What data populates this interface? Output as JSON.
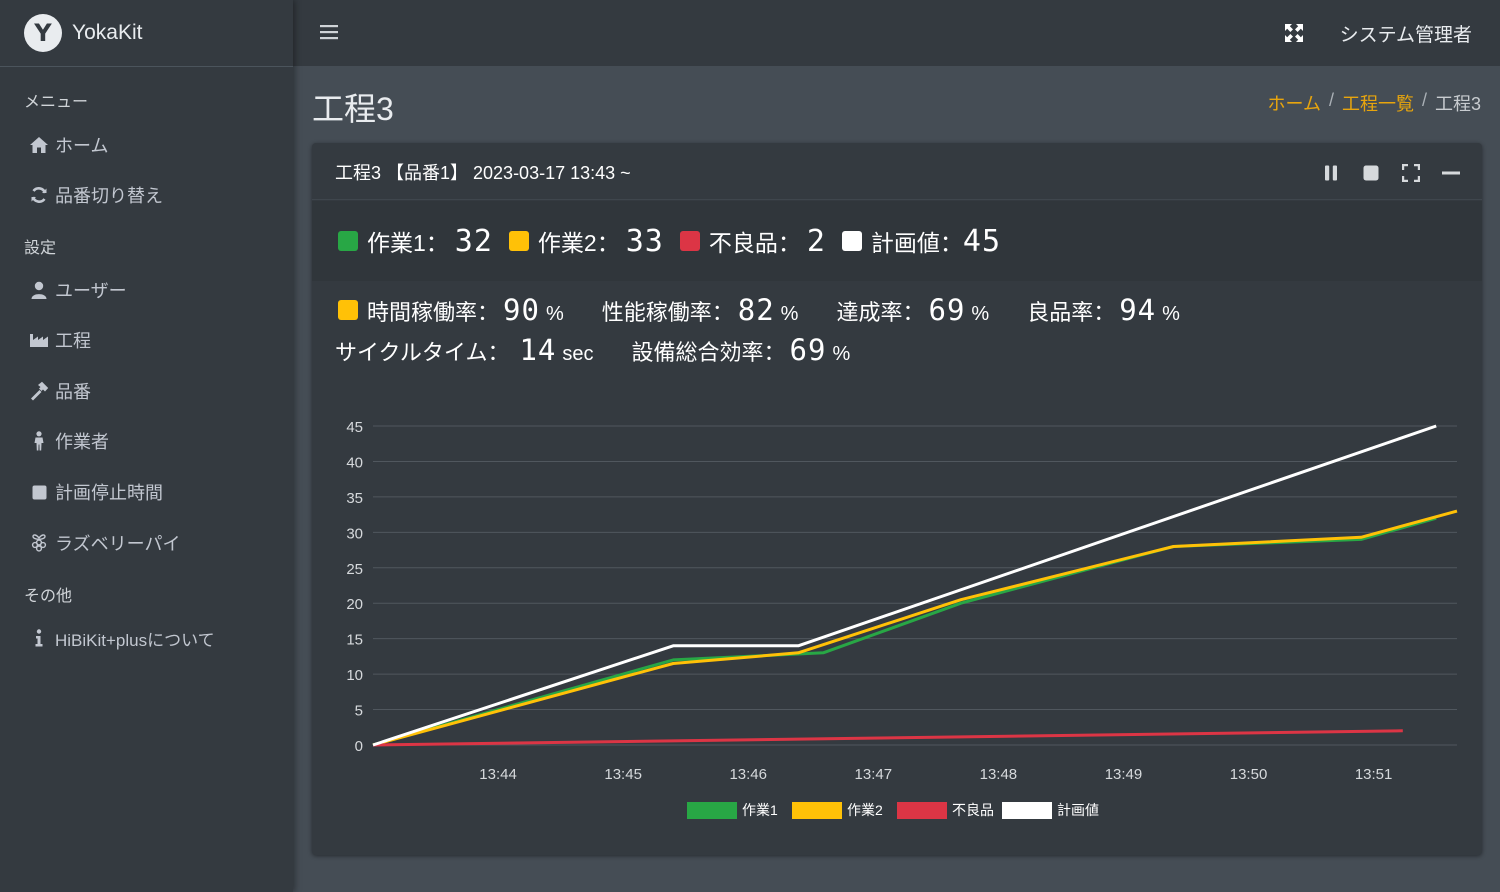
{
  "brand": {
    "logo_letter": "Y",
    "name": "YokaKit"
  },
  "sidebar": {
    "menu_header": "メニュー",
    "menu_items": [
      {
        "label": "ホーム",
        "icon": "home-icon"
      },
      {
        "label": "品番切り替え",
        "icon": "sync-icon"
      }
    ],
    "settings_header": "設定",
    "settings_items": [
      {
        "label": "ユーザー",
        "icon": "user-icon"
      },
      {
        "label": "工程",
        "icon": "industry-icon"
      },
      {
        "label": "品番",
        "icon": "hammer-icon"
      },
      {
        "label": "作業者",
        "icon": "person-icon"
      },
      {
        "label": "計画停止時間",
        "icon": "square-icon"
      },
      {
        "label": "ラズベリーパイ",
        "icon": "raspberry-pi-icon"
      }
    ],
    "other_header": "その他",
    "other_items": [
      {
        "label": "HiBiKit+plusについて",
        "icon": "info-icon"
      }
    ]
  },
  "navbar": {
    "user": "システム管理者"
  },
  "page": {
    "title": "工程3"
  },
  "breadcrumb": {
    "home": "ホーム",
    "list": "工程一覧",
    "current": "工程3"
  },
  "card": {
    "title": "工程3 【品番1】 2023-03-17 13:43 ~"
  },
  "counts": {
    "work1_label": "作業1：",
    "work1_value": "32",
    "work2_label": "作業2：",
    "work2_value": "33",
    "defect_label": "不良品：",
    "defect_value": "2",
    "plan_label": "計画値：",
    "plan_value": "45"
  },
  "rates": {
    "time_label": "時間稼働率：",
    "time_value": "90",
    "perf_label": "性能稼働率：",
    "perf_value": "82",
    "achieve_label": "達成率：",
    "achieve_value": "69",
    "quality_label": "良品率：",
    "quality_value": "94",
    "percent": "%",
    "cycle_label": "サイクルタイム：",
    "cycle_value": "14",
    "cycle_unit": "sec",
    "oee_label": "設備総合効率：",
    "oee_value": "69"
  },
  "colors": {
    "work1": "#28a745",
    "work2": "#ffc107",
    "defect": "#dc3545",
    "plan": "#ffffff",
    "accent": "#e8a50d"
  },
  "chart_data": {
    "type": "line",
    "x_ticks": [
      "13:44",
      "13:45",
      "13:46",
      "13:47",
      "13:48",
      "13:49",
      "13:50",
      "13:51"
    ],
    "xlim": [
      "13:43",
      "13:51:40"
    ],
    "ylim": [
      0,
      45
    ],
    "y_ticks": [
      0,
      5,
      10,
      15,
      20,
      25,
      30,
      35,
      40,
      45
    ],
    "grid": true,
    "legend_position": "bottom",
    "series": [
      {
        "name": "作業1",
        "color": "#28a745",
        "x": [
          "13:43:00",
          "13:45:24",
          "13:46:36",
          "13:47:42",
          "13:49:24",
          "13:50:54",
          "13:51:30"
        ],
        "y": [
          0,
          12,
          13,
          20,
          28,
          29,
          32
        ]
      },
      {
        "name": "作業2",
        "color": "#ffc107",
        "x": [
          "13:43:00",
          "13:45:24",
          "13:46:24",
          "13:47:42",
          "13:49:24",
          "13:50:54",
          "13:51:40"
        ],
        "y": [
          0,
          11.5,
          13,
          20.5,
          28,
          29.3,
          33
        ]
      },
      {
        "name": "不良品",
        "color": "#dc3545",
        "x": [
          "13:43:00",
          "13:51:14"
        ],
        "y": [
          0,
          2
        ]
      },
      {
        "name": "計画値",
        "color": "#ffffff",
        "x": [
          "13:43:00",
          "13:45:24",
          "13:46:24",
          "13:51:30"
        ],
        "y": [
          0,
          14,
          14,
          45
        ]
      }
    ]
  }
}
